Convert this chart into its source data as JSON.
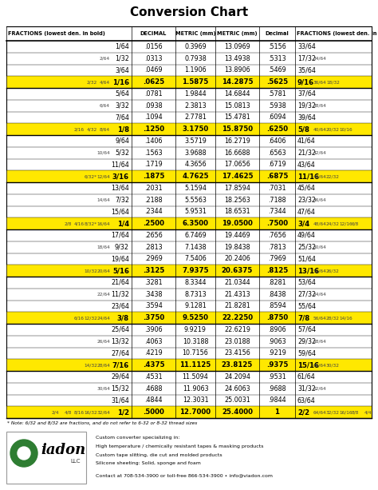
{
  "title": "Conversion Chart",
  "header": [
    "FRACTIONS (lowest den. in bold)",
    "DECIMAL",
    "METRIC (mm)",
    "METRIC (mm)",
    "Decimal",
    "FRACTIONS (lowest den. in bold)"
  ],
  "rows": [
    {
      "frac_left": "1/64",
      "frac_left_extra": [],
      "decimal": ".0156",
      "metric": "0.3969",
      "metric2": "13.0969",
      "decimal2": ".5156",
      "frac_right": "33/64",
      "frac_right_extra": [],
      "highlight": false
    },
    {
      "frac_left": "1/32",
      "frac_left_extra": [
        "2/64"
      ],
      "decimal": ".0313",
      "metric": "0.7938",
      "metric2": "13.4938",
      "decimal2": ".5313",
      "frac_right": "17/32",
      "frac_right_extra": [
        "34/64"
      ],
      "highlight": false
    },
    {
      "frac_left": "3/64",
      "frac_left_extra": [],
      "decimal": ".0469",
      "metric": "1.1906",
      "metric2": "13.8906",
      "decimal2": ".5469",
      "frac_right": "35/64",
      "frac_right_extra": [],
      "highlight": false
    },
    {
      "frac_left": "1/16",
      "frac_left_extra": [
        "2/32",
        "4/64"
      ],
      "decimal": ".0625",
      "metric": "1.5875",
      "metric2": "14.2875",
      "decimal2": ".5625",
      "frac_right": "9/16",
      "frac_right_extra": [
        "36/64",
        "18/32"
      ],
      "highlight": true
    },
    {
      "frac_left": "5/64",
      "frac_left_extra": [],
      "decimal": ".0781",
      "metric": "1.9844",
      "metric2": "14.6844",
      "decimal2": ".5781",
      "frac_right": "37/64",
      "frac_right_extra": [],
      "highlight": false
    },
    {
      "frac_left": "3/32",
      "frac_left_extra": [
        "6/64"
      ],
      "decimal": ".0938",
      "metric": "2.3813",
      "metric2": "15.0813",
      "decimal2": ".5938",
      "frac_right": "19/32",
      "frac_right_extra": [
        "38/64"
      ],
      "highlight": false
    },
    {
      "frac_left": "7/64",
      "frac_left_extra": [],
      "decimal": ".1094",
      "metric": "2.7781",
      "metric2": "15.4781",
      "decimal2": ".6094",
      "frac_right": "39/64",
      "frac_right_extra": [],
      "highlight": false
    },
    {
      "frac_left": "1/8",
      "frac_left_extra": [
        "2/16",
        "4/32",
        "8/64"
      ],
      "decimal": ".1250",
      "metric": "3.1750",
      "metric2": "15.8750",
      "decimal2": ".6250",
      "frac_right": "5/8",
      "frac_right_extra": [
        "40/64",
        "20/32",
        "10/16"
      ],
      "highlight": true
    },
    {
      "frac_left": "9/64",
      "frac_left_extra": [],
      "decimal": ".1406",
      "metric": "3.5719",
      "metric2": "16.2719",
      "decimal2": ".6406",
      "frac_right": "41/64",
      "frac_right_extra": [],
      "highlight": false
    },
    {
      "frac_left": "5/32",
      "frac_left_extra": [
        "10/64"
      ],
      "decimal": ".1563",
      "metric": "3.9688",
      "metric2": "16.6688",
      "decimal2": ".6563",
      "frac_right": "21/32",
      "frac_right_extra": [
        "42/64"
      ],
      "highlight": false
    },
    {
      "frac_left": "11/64",
      "frac_left_extra": [],
      "decimal": ".1719",
      "metric": "4.3656",
      "metric2": "17.0656",
      "decimal2": ".6719",
      "frac_right": "43/64",
      "frac_right_extra": [],
      "highlight": false
    },
    {
      "frac_left": "3/16",
      "frac_left_extra": [
        "6/32*",
        "12/64"
      ],
      "decimal": ".1875",
      "metric": "4.7625",
      "metric2": "17.4625",
      "decimal2": ".6875",
      "frac_right": "11/16",
      "frac_right_extra": [
        "44/64",
        "22/32"
      ],
      "highlight": true
    },
    {
      "frac_left": "13/64",
      "frac_left_extra": [],
      "decimal": ".2031",
      "metric": "5.1594",
      "metric2": "17.8594",
      "decimal2": ".7031",
      "frac_right": "45/64",
      "frac_right_extra": [],
      "highlight": false
    },
    {
      "frac_left": "7/32",
      "frac_left_extra": [
        "14/64"
      ],
      "decimal": ".2188",
      "metric": "5.5563",
      "metric2": "18.2563",
      "decimal2": ".7188",
      "frac_right": "23/32",
      "frac_right_extra": [
        "46/64"
      ],
      "highlight": false
    },
    {
      "frac_left": "15/64",
      "frac_left_extra": [],
      "decimal": ".2344",
      "metric": "5.9531",
      "metric2": "18.6531",
      "decimal2": ".7344",
      "frac_right": "47/64",
      "frac_right_extra": [],
      "highlight": false
    },
    {
      "frac_left": "1/4",
      "frac_left_extra": [
        "2/8",
        "4/16",
        "8/32*",
        "16/64"
      ],
      "decimal": ".2500",
      "metric": "6.3500",
      "metric2": "19.0500",
      "decimal2": ".7500",
      "frac_right": "3/4",
      "frac_right_extra": [
        "48/64",
        "24/32",
        "12/16",
        "6/8"
      ],
      "highlight": true
    },
    {
      "frac_left": "17/64",
      "frac_left_extra": [],
      "decimal": ".2656",
      "metric": "6.7469",
      "metric2": "19.4469",
      "decimal2": ".7656",
      "frac_right": "49/64",
      "frac_right_extra": [],
      "highlight": false
    },
    {
      "frac_left": "9/32",
      "frac_left_extra": [
        "18/64"
      ],
      "decimal": ".2813",
      "metric": "7.1438",
      "metric2": "19.8438",
      "decimal2": ".7813",
      "frac_right": "25/32",
      "frac_right_extra": [
        "50/64"
      ],
      "highlight": false
    },
    {
      "frac_left": "19/64",
      "frac_left_extra": [],
      "decimal": ".2969",
      "metric": "7.5406",
      "metric2": "20.2406",
      "decimal2": ".7969",
      "frac_right": "51/64",
      "frac_right_extra": [],
      "highlight": false
    },
    {
      "frac_left": "5/16",
      "frac_left_extra": [
        "10/32",
        "20/64"
      ],
      "decimal": ".3125",
      "metric": "7.9375",
      "metric2": "20.6375",
      "decimal2": ".8125",
      "frac_right": "13/16",
      "frac_right_extra": [
        "52/64",
        "26/32"
      ],
      "highlight": true
    },
    {
      "frac_left": "21/64",
      "frac_left_extra": [],
      "decimal": ".3281",
      "metric": "8.3344",
      "metric2": "21.0344",
      "decimal2": ".8281",
      "frac_right": "53/64",
      "frac_right_extra": [],
      "highlight": false
    },
    {
      "frac_left": "11/32",
      "frac_left_extra": [
        "22/64"
      ],
      "decimal": ".3438",
      "metric": "8.7313",
      "metric2": "21.4313",
      "decimal2": ".8438",
      "frac_right": "27/32",
      "frac_right_extra": [
        "54/64"
      ],
      "highlight": false
    },
    {
      "frac_left": "23/64",
      "frac_left_extra": [],
      "decimal": ".3594",
      "metric": "9.1281",
      "metric2": "21.8281",
      "decimal2": ".8594",
      "frac_right": "55/64",
      "frac_right_extra": [],
      "highlight": false
    },
    {
      "frac_left": "3/8",
      "frac_left_extra": [
        "6/16",
        "12/32",
        "24/64"
      ],
      "decimal": ".3750",
      "metric": "9.5250",
      "metric2": "22.2250",
      "decimal2": ".8750",
      "frac_right": "7/8",
      "frac_right_extra": [
        "56/64",
        "28/32",
        "14/16"
      ],
      "highlight": true
    },
    {
      "frac_left": "25/64",
      "frac_left_extra": [],
      "decimal": ".3906",
      "metric": "9.9219",
      "metric2": "22.6219",
      "decimal2": ".8906",
      "frac_right": "57/64",
      "frac_right_extra": [],
      "highlight": false
    },
    {
      "frac_left": "13/32",
      "frac_left_extra": [
        "26/64"
      ],
      "decimal": ".4063",
      "metric": "10.3188",
      "metric2": "23.0188",
      "decimal2": ".9063",
      "frac_right": "29/32",
      "frac_right_extra": [
        "58/64"
      ],
      "highlight": false
    },
    {
      "frac_left": "27/64",
      "frac_left_extra": [],
      "decimal": ".4219",
      "metric": "10.7156",
      "metric2": "23.4156",
      "decimal2": ".9219",
      "frac_right": "59/64",
      "frac_right_extra": [],
      "highlight": false
    },
    {
      "frac_left": "7/16",
      "frac_left_extra": [
        "14/32",
        "28/64"
      ],
      "decimal": ".4375",
      "metric": "11.1125",
      "metric2": "23.8125",
      "decimal2": ".9375",
      "frac_right": "15/16",
      "frac_right_extra": [
        "60/64",
        "30/32"
      ],
      "highlight": true
    },
    {
      "frac_left": "29/64",
      "frac_left_extra": [],
      "decimal": ".4531",
      "metric": "11.5094",
      "metric2": "24.2094",
      "decimal2": ".9531",
      "frac_right": "61/64",
      "frac_right_extra": [],
      "highlight": false
    },
    {
      "frac_left": "15/32",
      "frac_left_extra": [
        "30/64"
      ],
      "decimal": ".4688",
      "metric": "11.9063",
      "metric2": "24.6063",
      "decimal2": ".9688",
      "frac_right": "31/32",
      "frac_right_extra": [
        "62/64"
      ],
      "highlight": false
    },
    {
      "frac_left": "31/64",
      "frac_left_extra": [],
      "decimal": ".4844",
      "metric": "12.3031",
      "metric2": "25.0031",
      "decimal2": ".9844",
      "frac_right": "63/64",
      "frac_right_extra": [],
      "highlight": false
    },
    {
      "frac_left": "1/2",
      "frac_left_extra": [
        "2/4",
        "4/8",
        "8/16",
        "16/32",
        "32/64"
      ],
      "decimal": ".5000",
      "metric": "12.7000",
      "metric2": "25.4000",
      "decimal2": "1",
      "frac_right": "2/2",
      "frac_right_extra": [
        "64/64",
        "32/32",
        "16/16",
        "8/8",
        "4/4"
      ],
      "highlight": true
    }
  ],
  "highlight_color": "#FFE800",
  "bg_color": "#FFFFFF",
  "note": "* Note: 6/32 and 8/32 are fractions, and do not refer to 6-32 or 8-32 thread sizes",
  "footer_lines": [
    "Custom converter specializing in:",
    "High temperature / chemically resistant tapes & masking products",
    "Custom tape slitting, die cut and molded products",
    "Silicone sheeting: Solid, sponge and foam",
    "Contact at 708-534-3900 or toll-free 866-534-3900 • info@viadon.com"
  ]
}
